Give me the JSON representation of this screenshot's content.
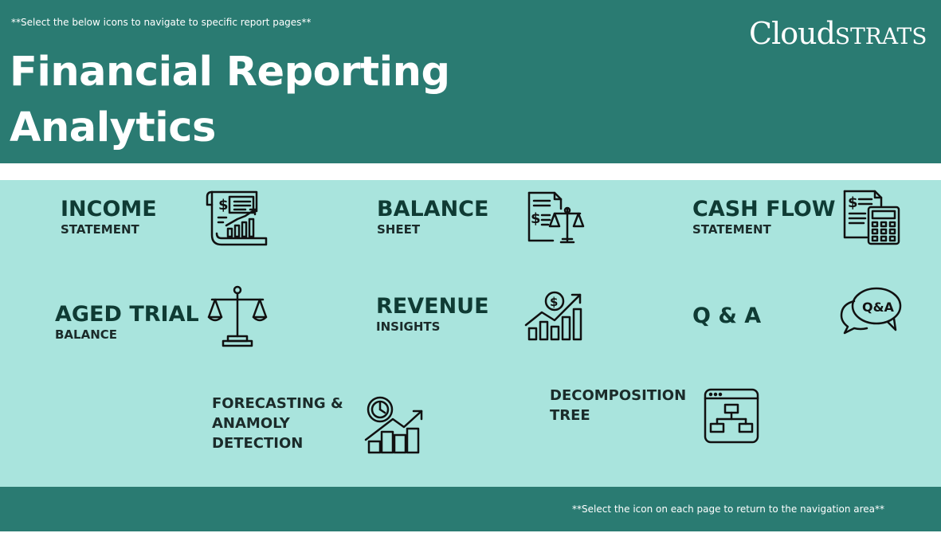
{
  "header": {
    "hint": "**Select the below icons to navigate to specific report pages**",
    "title_line1": "Financial Reporting",
    "title_line2": "Analytics",
    "logo_part1": "Cloud",
    "logo_part2": "STRATS"
  },
  "nav": {
    "income": {
      "title": "INCOME",
      "subtitle": "STATEMENT",
      "icon": "income-statement-icon"
    },
    "balance": {
      "title": "BALANCE",
      "subtitle": "SHEET",
      "icon": "balance-sheet-icon"
    },
    "cashflow": {
      "title": "CASH FLOW",
      "subtitle": "STATEMENT",
      "icon": "cash-flow-icon"
    },
    "aged": {
      "title": "AGED TRIAL",
      "subtitle": "BALANCE",
      "icon": "scales-icon"
    },
    "revenue": {
      "title": "REVENUE",
      "subtitle": "INSIGHTS",
      "icon": "revenue-growth-icon"
    },
    "qa": {
      "title": "Q & A",
      "icon": "qa-bubble-icon",
      "icon_text": "Q&A"
    },
    "forecasting": {
      "line1": "FORECASTING &",
      "line2": "ANAMOLY",
      "line3": "DETECTION",
      "icon": "forecast-chart-icon"
    },
    "decomposition": {
      "line1": "DECOMPOSITION",
      "line2": "TREE",
      "icon": "hierarchy-tree-icon"
    }
  },
  "footer": {
    "hint": "**Select the icon on each page to return to the navigation area**"
  },
  "colors": {
    "header_bg": "#2a7b72",
    "main_bg": "#a9e4dd",
    "title_dark": "#0f3b34"
  }
}
